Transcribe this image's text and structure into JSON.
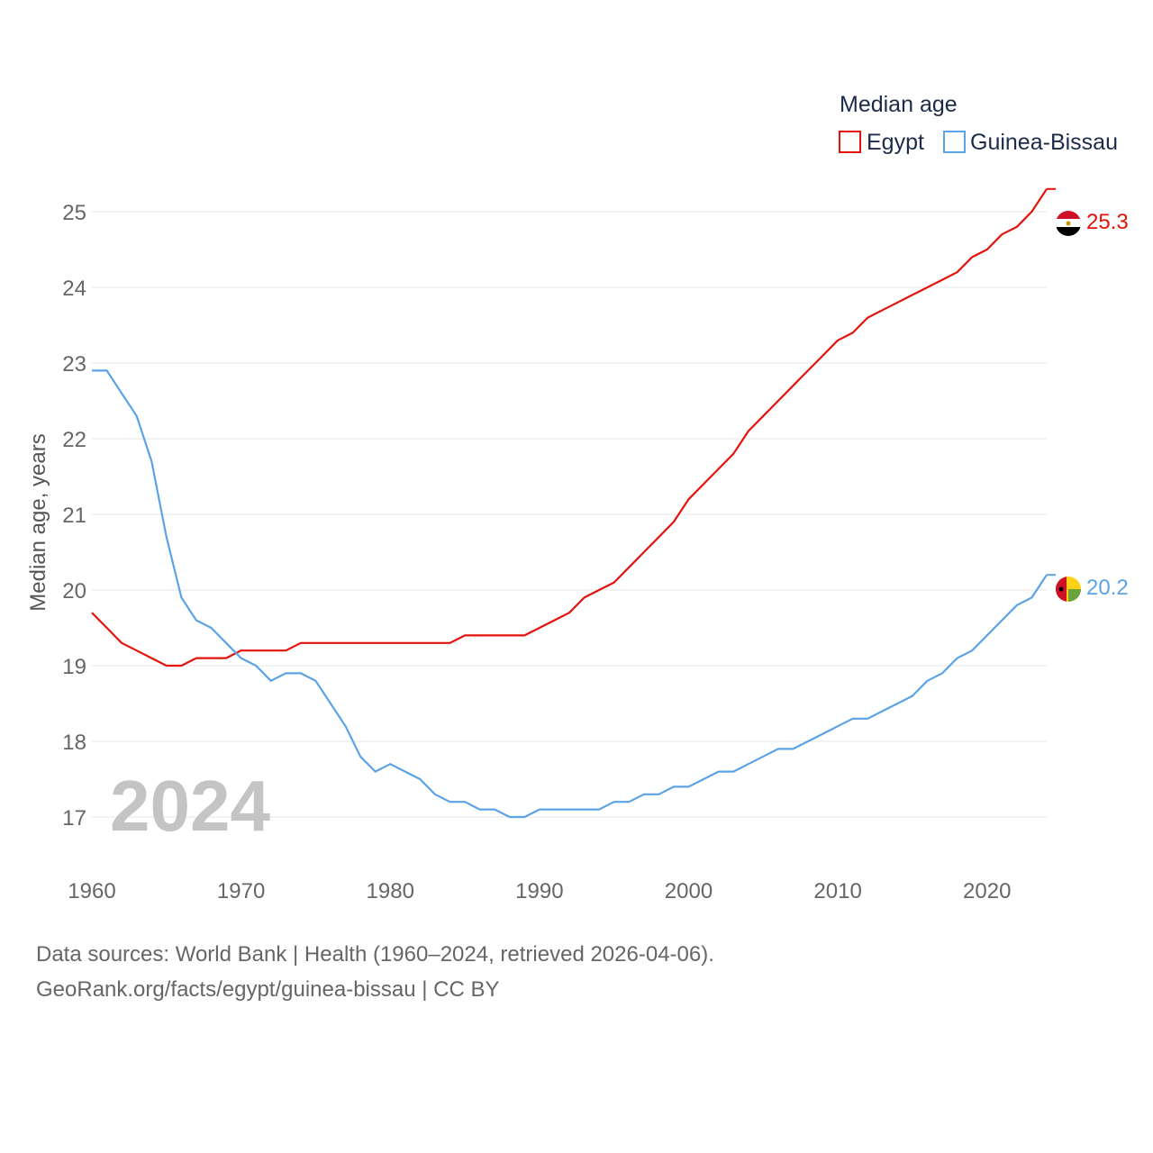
{
  "chart_data": {
    "type": "line",
    "legend_title": "Median age",
    "ylabel": "Median age, years",
    "year_label": "2024",
    "x": [
      1960,
      1961,
      1962,
      1963,
      1964,
      1965,
      1966,
      1967,
      1968,
      1969,
      1970,
      1971,
      1972,
      1973,
      1974,
      1975,
      1976,
      1977,
      1978,
      1979,
      1980,
      1981,
      1982,
      1983,
      1984,
      1985,
      1986,
      1987,
      1988,
      1989,
      1990,
      1991,
      1992,
      1993,
      1994,
      1995,
      1996,
      1997,
      1998,
      1999,
      2000,
      2001,
      2002,
      2003,
      2004,
      2005,
      2006,
      2007,
      2008,
      2009,
      2010,
      2011,
      2012,
      2013,
      2014,
      2015,
      2016,
      2017,
      2018,
      2019,
      2020,
      2021,
      2022,
      2023,
      2024
    ],
    "xlim": [
      1960,
      2024
    ],
    "ylim": [
      16.5,
      25.5
    ],
    "xticks": [
      1960,
      1970,
      1980,
      1990,
      2000,
      2010,
      2020
    ],
    "xtick_labels": [
      "1960",
      "1970",
      "1980",
      "1990",
      "2000",
      "2010",
      "2020"
    ],
    "yticks": [
      17,
      18,
      19,
      20,
      21,
      22,
      23,
      24,
      25
    ],
    "ytick_labels": [
      "17",
      "18",
      "19",
      "20",
      "21",
      "22",
      "23",
      "24",
      "25"
    ],
    "series": [
      {
        "name": "Egypt",
        "color": "#e3120b",
        "end_label": "25.3",
        "values": [
          19.7,
          19.5,
          19.3,
          19.2,
          19.1,
          19.0,
          19.0,
          19.1,
          19.1,
          19.1,
          19.2,
          19.2,
          19.2,
          19.2,
          19.3,
          19.3,
          19.3,
          19.3,
          19.3,
          19.3,
          19.3,
          19.3,
          19.3,
          19.3,
          19.3,
          19.4,
          19.4,
          19.4,
          19.4,
          19.4,
          19.5,
          19.6,
          19.7,
          19.9,
          20.0,
          20.1,
          20.3,
          20.5,
          20.7,
          20.9,
          21.2,
          21.4,
          21.6,
          21.8,
          22.1,
          22.3,
          22.5,
          22.7,
          22.9,
          23.1,
          23.3,
          23.4,
          23.6,
          23.7,
          23.8,
          23.9,
          24.0,
          24.1,
          24.2,
          24.4,
          24.5,
          24.7,
          24.8,
          25.0,
          25.3
        ]
      },
      {
        "name": "Guinea-Bissau",
        "color": "#5ba3e6",
        "end_label": "20.2",
        "values": [
          22.9,
          22.9,
          22.6,
          22.3,
          21.7,
          20.7,
          19.9,
          19.6,
          19.5,
          19.3,
          19.1,
          19.0,
          18.8,
          18.9,
          18.9,
          18.8,
          18.5,
          18.2,
          17.8,
          17.6,
          17.7,
          17.6,
          17.5,
          17.3,
          17.2,
          17.2,
          17.1,
          17.1,
          17.0,
          17.0,
          17.1,
          17.1,
          17.1,
          17.1,
          17.1,
          17.2,
          17.2,
          17.3,
          17.3,
          17.4,
          17.4,
          17.5,
          17.6,
          17.6,
          17.7,
          17.8,
          17.9,
          17.9,
          18.0,
          18.1,
          18.2,
          18.3,
          18.3,
          18.4,
          18.5,
          18.6,
          18.8,
          18.9,
          19.1,
          19.2,
          19.4,
          19.6,
          19.8,
          19.9,
          20.2
        ]
      }
    ]
  },
  "footer": {
    "line1": "Data sources: World Bank | Health (1960–2024, retrieved 2026-04-06).",
    "line2": "GeoRank.org/facts/egypt/guinea-bissau | CC BY"
  }
}
